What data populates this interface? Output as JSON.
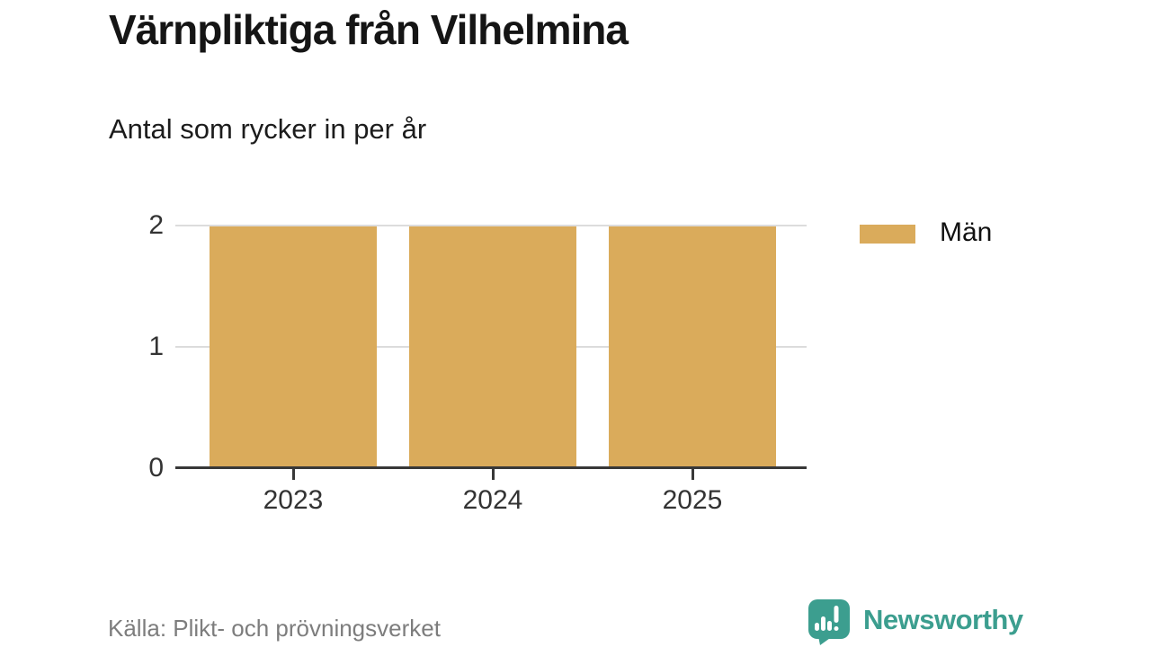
{
  "header": {
    "title": "Värnpliktiga från Vilhelmina",
    "subtitle": "Antal som rycker in per år"
  },
  "chart_data": {
    "type": "bar",
    "title": "Värnpliktiga från Vilhelmina",
    "subtitle": "Antal som rycker in per år",
    "categories": [
      "2023",
      "2024",
      "2025"
    ],
    "series": [
      {
        "name": "Män",
        "values": [
          2,
          2,
          2
        ],
        "color": "#daab5b"
      }
    ],
    "xlabel": "",
    "ylabel": "",
    "ylim": [
      0,
      2
    ],
    "yticks": [
      0,
      1,
      2
    ],
    "grid": "horizontal-light-gray",
    "legend_position": "right"
  },
  "legend": {
    "items": [
      {
        "label": "Män",
        "color": "#daab5b"
      }
    ]
  },
  "footer": {
    "source": "Källa: Plikt- och prövningsverket",
    "brand": "Newsworthy",
    "brand_color": "#3c9e8f"
  }
}
